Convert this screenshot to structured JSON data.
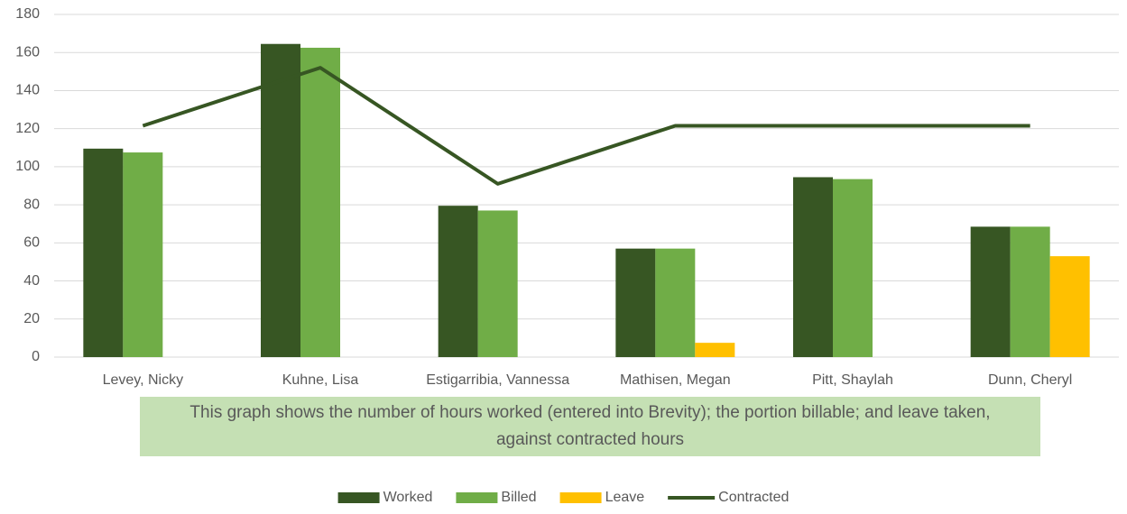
{
  "chart_data": {
    "type": "bar_line",
    "categories": [
      "Levey, Nicky",
      "Kuhne, Lisa",
      "Estigarribia, Vannessa",
      "Mathisen, Megan",
      "Pitt, Shaylah",
      "Dunn, Cheryl"
    ],
    "series": [
      {
        "name": "Worked",
        "type": "bar",
        "color": "#375623",
        "values": [
          109.5,
          164.5,
          79.5,
          57,
          94.5,
          68.5
        ]
      },
      {
        "name": "Billed",
        "type": "bar",
        "color": "#70ad47",
        "values": [
          107.5,
          162.5,
          77,
          57,
          93.5,
          68.5
        ]
      },
      {
        "name": "Leave",
        "type": "bar",
        "color": "#ffc000",
        "values": [
          0,
          0,
          0,
          7.5,
          0,
          53
        ]
      },
      {
        "name": "Contracted",
        "type": "line",
        "color": "#375623",
        "values": [
          121.5,
          152,
          91,
          121.5,
          121.5,
          121.5
        ]
      }
    ],
    "annotation": "This graph shows the number of hours worked (entered into Brevity); the portion billable; and leave taken, against contracted hours",
    "ylim": [
      0,
      180
    ],
    "yticks": [
      0,
      20,
      40,
      60,
      80,
      100,
      120,
      140,
      160,
      180
    ],
    "grid": true,
    "legend": "bottom"
  }
}
